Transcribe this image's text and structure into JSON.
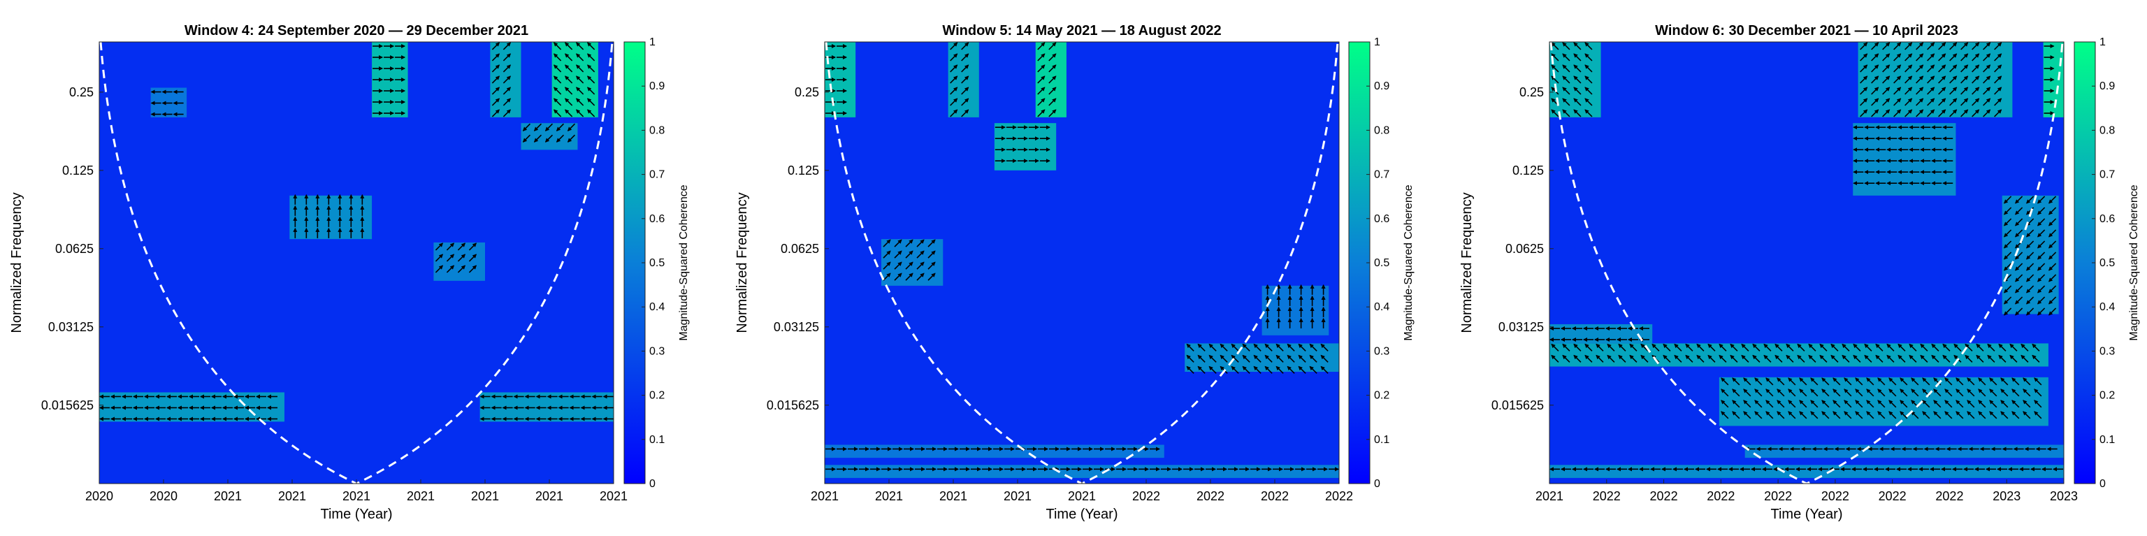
{
  "colors": {
    "low": "#0000ff",
    "mid": "#0a7fd8",
    "high": "#00ff88",
    "arrow": "#000000",
    "coi": "#ffffff"
  },
  "chart_data": [
    {
      "type": "heatmap",
      "title": "Window 4: 24 September 2020 — 29 December 2021",
      "xlabel": "Time (Year)",
      "ylabel": "Normalized Frequency",
      "colorbar_label": "Magnitude-Squared Coherence",
      "clim": [
        0,
        1
      ],
      "colorbar_ticks": [
        "0",
        "0.1",
        "0.2",
        "0.3",
        "0.4",
        "0.5",
        "0.6",
        "0.7",
        "0.8",
        "0.9",
        "1"
      ],
      "y_ticks": [
        "0.25",
        "0.125",
        "0.0625",
        "0.03125",
        "0.015625"
      ],
      "y_tick_values": [
        0.25,
        0.125,
        0.0625,
        0.03125,
        0.015625
      ],
      "y_range": [
        0.0078,
        0.39
      ],
      "x_ticks": [
        "2020",
        "2020",
        "2021",
        "2021",
        "2021",
        "2021",
        "2021",
        "2021",
        "2021"
      ],
      "cone_of_influence": "dashed white",
      "high_coherence_regions": [
        {
          "freq": [
            0.0135,
            0.0175
          ],
          "time": [
            0.0,
            0.36
          ],
          "coherence": 0.65,
          "phase": "left"
        },
        {
          "freq": [
            0.0135,
            0.0175
          ],
          "time": [
            0.74,
            1.0
          ],
          "coherence": 0.65,
          "phase": "left"
        },
        {
          "freq": [
            0.068,
            0.1
          ],
          "time": [
            0.37,
            0.53
          ],
          "coherence": 0.6,
          "phase": "up"
        },
        {
          "freq": [
            0.047,
            0.066
          ],
          "time": [
            0.65,
            0.75
          ],
          "coherence": 0.55,
          "phase": "up-right"
        },
        {
          "freq": [
            0.2,
            0.39
          ],
          "time": [
            0.53,
            0.6
          ],
          "coherence": 0.8,
          "phase": "right"
        },
        {
          "freq": [
            0.2,
            0.39
          ],
          "time": [
            0.76,
            0.82
          ],
          "coherence": 0.7,
          "phase": "up-right"
        },
        {
          "freq": [
            0.2,
            0.39
          ],
          "time": [
            0.88,
            0.97
          ],
          "coherence": 0.9,
          "phase": "up-left"
        },
        {
          "freq": [
            0.15,
            0.19
          ],
          "time": [
            0.82,
            0.93
          ],
          "coherence": 0.6,
          "phase": "down-left"
        },
        {
          "freq": [
            0.2,
            0.26
          ],
          "time": [
            0.1,
            0.17
          ],
          "coherence": 0.5,
          "phase": "left"
        }
      ]
    },
    {
      "type": "heatmap",
      "title": "Window 5: 14 May 2021 — 18 August 2022",
      "xlabel": "Time (Year)",
      "ylabel": "Normalized Frequency",
      "colorbar_label": "Magnitude-Squared Coherence",
      "clim": [
        0,
        1
      ],
      "colorbar_ticks": [
        "0",
        "0.1",
        "0.2",
        "0.3",
        "0.4",
        "0.5",
        "0.6",
        "0.7",
        "0.8",
        "0.9",
        "1"
      ],
      "y_ticks": [
        "0.25",
        "0.125",
        "0.0625",
        "0.03125",
        "0.015625"
      ],
      "y_tick_values": [
        0.25,
        0.125,
        0.0625,
        0.03125,
        0.015625
      ],
      "y_range": [
        0.0078,
        0.39
      ],
      "x_ticks": [
        "2021",
        "2021",
        "2021",
        "2021",
        "2021",
        "2022",
        "2022",
        "2022",
        "2022"
      ],
      "cone_of_influence": "dashed white",
      "high_coherence_regions": [
        {
          "freq": [
            0.0082,
            0.0092
          ],
          "time": [
            0.0,
            1.0
          ],
          "coherence": 0.55,
          "phase": "right"
        },
        {
          "freq": [
            0.0098,
            0.011
          ],
          "time": [
            0.0,
            0.66
          ],
          "coherence": 0.5,
          "phase": "right"
        },
        {
          "freq": [
            0.021,
            0.027
          ],
          "time": [
            0.7,
            1.0
          ],
          "coherence": 0.6,
          "phase": "up-left"
        },
        {
          "freq": [
            0.029,
            0.045
          ],
          "time": [
            0.85,
            0.98
          ],
          "coherence": 0.5,
          "phase": "up"
        },
        {
          "freq": [
            0.045,
            0.068
          ],
          "time": [
            0.11,
            0.23
          ],
          "coherence": 0.55,
          "phase": "up-right"
        },
        {
          "freq": [
            0.125,
            0.19
          ],
          "time": [
            0.33,
            0.45
          ],
          "coherence": 0.75,
          "phase": "right"
        },
        {
          "freq": [
            0.2,
            0.39
          ],
          "time": [
            0.24,
            0.3
          ],
          "coherence": 0.7,
          "phase": "up-right"
        },
        {
          "freq": [
            0.2,
            0.39
          ],
          "time": [
            0.41,
            0.47
          ],
          "coherence": 0.9,
          "phase": "up-right"
        },
        {
          "freq": [
            0.2,
            0.39
          ],
          "time": [
            0.0,
            0.06
          ],
          "coherence": 0.8,
          "phase": "right"
        }
      ]
    },
    {
      "type": "heatmap",
      "title": "Window 6: 30 December 2021 — 10 April 2023",
      "xlabel": "Time (Year)",
      "ylabel": "Normalized Frequency",
      "colorbar_label": "Magnitude-Squared Coherence",
      "clim": [
        0,
        1
      ],
      "colorbar_ticks": [
        "0",
        "0.1",
        "0.2",
        "0.3",
        "0.4",
        "0.5",
        "0.6",
        "0.7",
        "0.8",
        "0.9",
        "1"
      ],
      "y_ticks": [
        "0.25",
        "0.125",
        "0.0625",
        "0.03125",
        "0.015625"
      ],
      "y_tick_values": [
        0.25,
        0.125,
        0.0625,
        0.03125,
        0.015625
      ],
      "y_range": [
        0.0078,
        0.39
      ],
      "x_ticks": [
        "2021",
        "2022",
        "2022",
        "2022",
        "2022",
        "2022",
        "2022",
        "2022",
        "2023",
        "2023"
      ],
      "cone_of_influence": "dashed white",
      "high_coherence_regions": [
        {
          "freq": [
            0.0082,
            0.0092
          ],
          "time": [
            0.0,
            1.0
          ],
          "coherence": 0.6,
          "phase": "left"
        },
        {
          "freq": [
            0.0098,
            0.011
          ],
          "time": [
            0.38,
            1.0
          ],
          "coherence": 0.55,
          "phase": "left"
        },
        {
          "freq": [
            0.013,
            0.02
          ],
          "time": [
            0.33,
            0.97
          ],
          "coherence": 0.65,
          "phase": "up-left"
        },
        {
          "freq": [
            0.022,
            0.027
          ],
          "time": [
            0.0,
            0.97
          ],
          "coherence": 0.7,
          "phase": "up-left"
        },
        {
          "freq": [
            0.027,
            0.032
          ],
          "time": [
            0.0,
            0.2
          ],
          "coherence": 0.6,
          "phase": "left"
        },
        {
          "freq": [
            0.035,
            0.1
          ],
          "time": [
            0.88,
            0.99
          ],
          "coherence": 0.6,
          "phase": "down-left"
        },
        {
          "freq": [
            0.1,
            0.19
          ],
          "time": [
            0.59,
            0.79
          ],
          "coherence": 0.6,
          "phase": "left"
        },
        {
          "freq": [
            0.2,
            0.39
          ],
          "time": [
            0.6,
            0.9
          ],
          "coherence": 0.7,
          "phase": "up-right"
        },
        {
          "freq": [
            0.2,
            0.39
          ],
          "time": [
            0.96,
            1.0
          ],
          "coherence": 0.9,
          "phase": "right"
        },
        {
          "freq": [
            0.2,
            0.39
          ],
          "time": [
            0.0,
            0.1
          ],
          "coherence": 0.75,
          "phase": "up-left"
        }
      ]
    }
  ]
}
